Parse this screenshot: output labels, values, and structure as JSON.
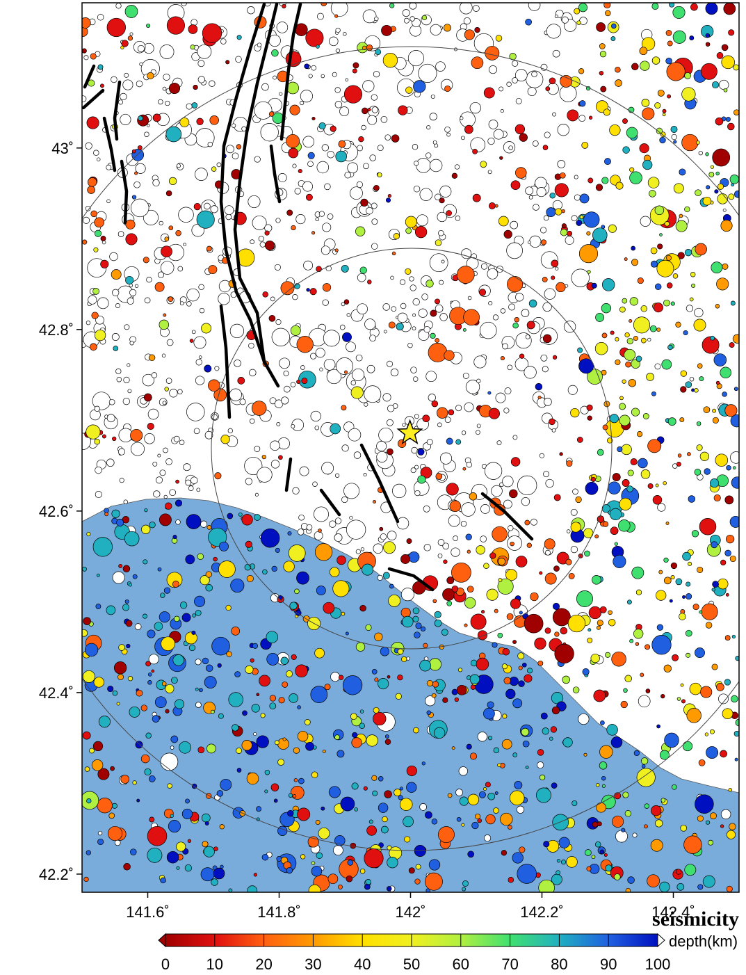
{
  "map": {
    "title": "seismicity",
    "lon_range": [
      141.5,
      142.5
    ],
    "lat_range": [
      42.18,
      43.16
    ],
    "lon_ticks": [
      {
        "value": 141.6,
        "label": "141.6˚"
      },
      {
        "value": 141.8,
        "label": "141.8˚"
      },
      {
        "value": 142.0,
        "label": "142˚"
      },
      {
        "value": 142.2,
        "label": "142.2˚"
      },
      {
        "value": 142.4,
        "label": "142.4˚"
      }
    ],
    "lat_ticks": [
      {
        "value": 43.0,
        "label": "43˚"
      },
      {
        "value": 42.8,
        "label": "42.8˚"
      },
      {
        "value": 42.6,
        "label": "42.6˚"
      },
      {
        "value": 42.4,
        "label": "42.4˚"
      },
      {
        "value": 42.2,
        "label": "42.2˚"
      }
    ],
    "epicenter": {
      "lon": 141.999,
      "lat": 42.686
    },
    "land_color": "#ffffff",
    "sea_color": "#7aacdb",
    "epicenter_color": "#ffee22"
  },
  "colorbar": {
    "unit_label": "depth(km)",
    "min": 0,
    "max": 100,
    "tick_labels": [
      "0",
      "10",
      "20",
      "30",
      "40",
      "50",
      "60",
      "70",
      "80",
      "90",
      "100"
    ],
    "colors": [
      "#a00000",
      "#e01010",
      "#ff6010",
      "#ff9a00",
      "#ffe000",
      "#f0f020",
      "#b0f040",
      "#40e070",
      "#20b0c0",
      "#2060e0",
      "#0010c0"
    ]
  }
}
